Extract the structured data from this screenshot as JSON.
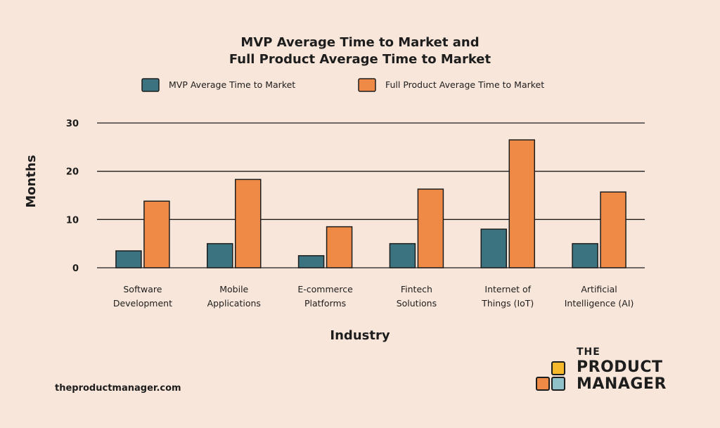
{
  "chart_data": {
    "type": "bar",
    "title": [
      "MVP Average Time to Market and",
      "Full Product Average Time to Market"
    ],
    "xlabel": "Industry",
    "ylabel": "Months",
    "ylim": [
      0,
      30
    ],
    "yticks": [
      0,
      10,
      20,
      30
    ],
    "grid": true,
    "legend_position": "top",
    "categories": [
      [
        "Software",
        "Development"
      ],
      [
        "Mobile",
        "Applications"
      ],
      [
        "E-commerce",
        "Platforms"
      ],
      [
        "Fintech",
        "Solutions"
      ],
      [
        "Internet of",
        "Things (IoT)"
      ],
      [
        "Artificial",
        "Intelligence (AI)"
      ]
    ],
    "series": [
      {
        "name": "MVP Average Time to Market",
        "color": "#3b7380",
        "values": [
          3.5,
          5,
          2.5,
          5,
          8,
          5
        ]
      },
      {
        "name": "Full Product Average Time to Market",
        "color": "#ee8a45",
        "values": [
          13.8,
          18.3,
          8.5,
          16.3,
          26.5,
          15.7
        ]
      }
    ]
  },
  "footer": {
    "url": "theproductmanager.com"
  },
  "logo": {
    "line1": "THE",
    "line2": "PRODUCT",
    "line3": "MANAGER",
    "colors": {
      "yellow": "#f6b92b",
      "orange": "#ee8a45",
      "blue": "#8fc1c9"
    }
  }
}
